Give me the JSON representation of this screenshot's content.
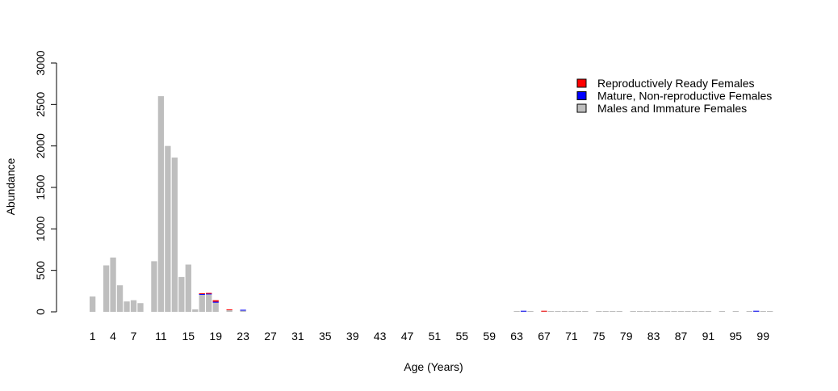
{
  "chart_data": {
    "type": "bar",
    "stacked": true,
    "xlabel": "Age (Years)",
    "ylabel": "Abundance",
    "ylim": [
      0,
      3000
    ],
    "y_ticks": [
      0,
      500,
      1000,
      1500,
      2000,
      2500,
      3000
    ],
    "x_tick_labels": [
      "1",
      "4",
      "7",
      "11",
      "15",
      "19",
      "23",
      "27",
      "31",
      "35",
      "39",
      "43",
      "47",
      "51",
      "55",
      "59",
      "63",
      "67",
      "71",
      "75",
      "79",
      "83",
      "87",
      "91",
      "95",
      "99"
    ],
    "legend_position": "top-right",
    "categories": [
      1,
      2,
      3,
      4,
      5,
      6,
      7,
      8,
      9,
      10,
      11,
      12,
      13,
      14,
      15,
      16,
      17,
      18,
      19,
      20,
      21,
      22,
      23,
      24,
      25,
      26,
      27,
      28,
      29,
      30,
      31,
      32,
      33,
      34,
      35,
      36,
      37,
      38,
      39,
      40,
      41,
      42,
      43,
      44,
      45,
      46,
      47,
      48,
      49,
      50,
      51,
      52,
      53,
      54,
      55,
      56,
      57,
      58,
      59,
      60,
      61,
      62,
      63,
      64,
      65,
      66,
      67,
      68,
      69,
      70,
      71,
      72,
      73,
      74,
      75,
      76,
      77,
      78,
      79,
      80,
      81,
      82,
      83,
      84,
      85,
      86,
      87,
      88,
      89,
      90,
      91,
      92,
      93,
      94,
      95,
      96,
      97,
      98,
      99,
      100
    ],
    "series": [
      {
        "name": "Males and Immature Females",
        "color": "#bebebe",
        "values": [
          185,
          0,
          560,
          655,
          320,
          125,
          140,
          105,
          0,
          610,
          2600,
          2000,
          1860,
          420,
          570,
          30,
          205,
          210,
          110,
          0,
          20,
          0,
          15,
          0,
          0,
          0,
          0,
          0,
          0,
          0,
          0,
          0,
          0,
          0,
          0,
          0,
          0,
          0,
          0,
          0,
          0,
          0,
          0,
          0,
          0,
          0,
          0,
          0,
          0,
          0,
          0,
          0,
          0,
          0,
          0,
          0,
          0,
          0,
          0,
          0,
          0,
          0,
          3,
          3,
          3,
          0,
          3,
          3,
          3,
          3,
          3,
          3,
          3,
          0,
          3,
          3,
          3,
          3,
          0,
          3,
          3,
          3,
          3,
          3,
          3,
          3,
          3,
          3,
          3,
          3,
          3,
          0,
          3,
          0,
          3,
          0,
          3,
          3,
          3,
          3
        ]
      },
      {
        "name": "Mature, Non-reproductive Females",
        "color": "#0000ff",
        "values": [
          0,
          0,
          0,
          0,
          0,
          0,
          0,
          0,
          0,
          0,
          0,
          0,
          0,
          0,
          0,
          0,
          10,
          8,
          12,
          0,
          0,
          0,
          5,
          0,
          0,
          0,
          0,
          0,
          0,
          0,
          0,
          0,
          0,
          0,
          0,
          0,
          0,
          0,
          0,
          0,
          0,
          0,
          0,
          0,
          0,
          0,
          0,
          0,
          0,
          0,
          0,
          0,
          0,
          0,
          0,
          0,
          0,
          0,
          0,
          0,
          0,
          0,
          0,
          2,
          0,
          0,
          0,
          0,
          0,
          0,
          0,
          0,
          0,
          0,
          0,
          0,
          0,
          0,
          0,
          0,
          0,
          0,
          0,
          0,
          0,
          0,
          0,
          0,
          0,
          0,
          0,
          0,
          0,
          0,
          0,
          0,
          0,
          3,
          0,
          0
        ]
      },
      {
        "name": "Reproductively Ready Females",
        "color": "#ff0000",
        "values": [
          0,
          0,
          0,
          0,
          0,
          0,
          0,
          0,
          0,
          0,
          0,
          0,
          0,
          0,
          0,
          0,
          5,
          10,
          18,
          0,
          5,
          0,
          0,
          0,
          0,
          0,
          0,
          0,
          0,
          0,
          0,
          0,
          0,
          0,
          0,
          0,
          0,
          0,
          0,
          0,
          0,
          0,
          0,
          0,
          0,
          0,
          0,
          0,
          0,
          0,
          0,
          0,
          0,
          0,
          0,
          0,
          0,
          0,
          0,
          0,
          0,
          0,
          0,
          0,
          0,
          0,
          2,
          0,
          0,
          0,
          0,
          0,
          0,
          0,
          0,
          0,
          0,
          0,
          0,
          0,
          0,
          0,
          0,
          0,
          0,
          0,
          0,
          0,
          0,
          0,
          0,
          0,
          0,
          0,
          0,
          0,
          0,
          0,
          0,
          0
        ]
      }
    ],
    "legend_order": [
      2,
      1,
      0
    ]
  }
}
